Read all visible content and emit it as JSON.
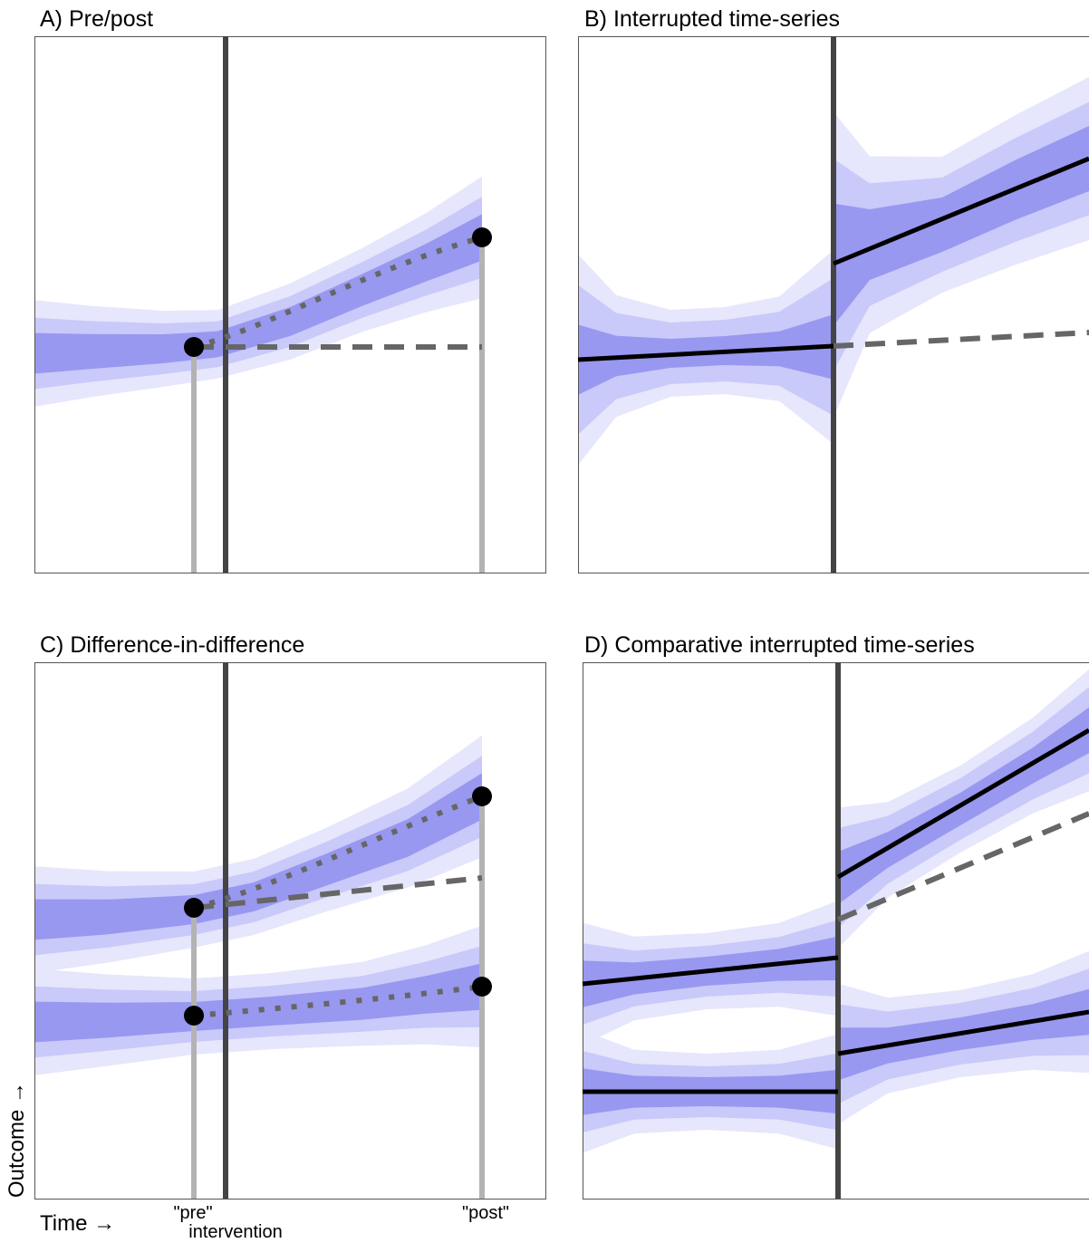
{
  "panels": [
    {
      "id": "A",
      "title": "A) Pre/post"
    },
    {
      "id": "B",
      "title": "B) Interrupted time-series"
    },
    {
      "id": "C",
      "title": "C) Difference-in-difference"
    },
    {
      "id": "D",
      "title": "D) Comparative interrupted time-series"
    }
  ],
  "axes": {
    "y_label": "Outcome →",
    "x_label": "Time →",
    "pre_label": "\"pre\"",
    "post_label": "\"post\"",
    "intervention_label": "intervention"
  },
  "colors": {
    "band_outer": "#e6e6fc",
    "band_mid": "#c9c9fa",
    "band_inner": "#9898f0",
    "intervention_line": "#444444",
    "measure_line": "#b3b3b3",
    "counterfactual": "#666666",
    "fit": "#000000",
    "frame": "#555555"
  }
}
